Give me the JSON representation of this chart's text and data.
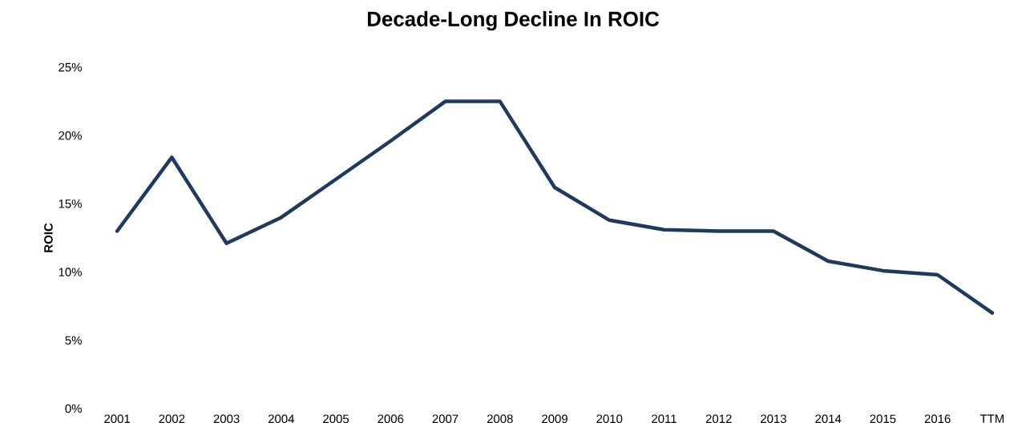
{
  "chart_data": {
    "type": "line",
    "title": "Decade-Long Decline In ROIC",
    "ylabel": "ROIC",
    "categories": [
      "2001",
      "2002",
      "2003",
      "2004",
      "2005",
      "2006",
      "2007",
      "2008",
      "2009",
      "2010",
      "2011",
      "2012",
      "2013",
      "2014",
      "2015",
      "2016",
      "TTM"
    ],
    "values": [
      13.0,
      18.4,
      12.1,
      14.0,
      16.8,
      19.6,
      22.5,
      22.5,
      16.2,
      13.8,
      13.1,
      13.0,
      13.0,
      10.8,
      10.1,
      9.8,
      7.0
    ],
    "color": "#1f3a5f",
    "ylim": [
      0,
      25
    ],
    "yticks": [
      {
        "value": 0,
        "label": "0%"
      },
      {
        "value": 5,
        "label": "5%"
      },
      {
        "value": 10,
        "label": "10%"
      },
      {
        "value": 15,
        "label": "15%"
      },
      {
        "value": 20,
        "label": "20%"
      },
      {
        "value": 25,
        "label": "25%"
      }
    ],
    "grid": false,
    "marker": "none",
    "line_style": "solid"
  }
}
